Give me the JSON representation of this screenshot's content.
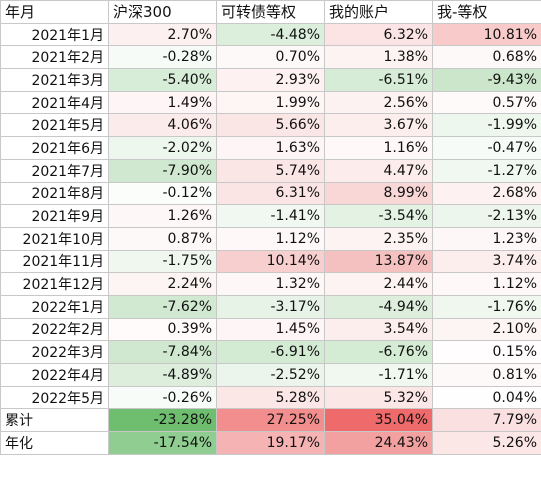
{
  "headers": [
    "年月",
    "沪深300",
    "可转债等权",
    "我的账户",
    "我-等权"
  ],
  "rows": [
    {
      "label": "2021年1月",
      "values": [
        "2.70%",
        "-4.48%",
        "6.32%",
        "10.81%"
      ],
      "colors": [
        "#fdf0f0",
        "#dcefdc",
        "#fce4e4",
        "#f8caca"
      ]
    },
    {
      "label": "2021年2月",
      "values": [
        "-0.28%",
        "0.70%",
        "1.38%",
        "0.68%"
      ],
      "colors": [
        "#f7fbf7",
        "#fef9f9",
        "#fdf3f3",
        "#fef9f9"
      ]
    },
    {
      "label": "2021年3月",
      "values": [
        "-5.40%",
        "2.93%",
        "-6.51%",
        "-9.43%"
      ],
      "colors": [
        "#d8edd8",
        "#fdf1f1",
        "#d6ecd6",
        "#cbe6cb"
      ]
    },
    {
      "label": "2021年4月",
      "values": [
        "1.49%",
        "1.99%",
        "2.56%",
        "0.57%"
      ],
      "colors": [
        "#fef6f6",
        "#fef5f5",
        "#fdf2f2",
        "#fefafa"
      ]
    },
    {
      "label": "2021年5月",
      "values": [
        "4.06%",
        "5.66%",
        "3.67%",
        "-1.99%"
      ],
      "colors": [
        "#fcebeb",
        "#fbe6e6",
        "#fdeeee",
        "#eef7ee"
      ]
    },
    {
      "label": "2021年6月",
      "values": [
        "-2.02%",
        "1.63%",
        "1.16%",
        "-0.47%"
      ],
      "colors": [
        "#eef7ee",
        "#fef6f6",
        "#fef8f8",
        "#f7fbf7"
      ]
    },
    {
      "label": "2021年7月",
      "values": [
        "-7.90%",
        "5.74%",
        "4.47%",
        "-1.27%"
      ],
      "colors": [
        "#cfe8cf",
        "#fbe6e6",
        "#fcecec",
        "#f1f8f1"
      ]
    },
    {
      "label": "2021年8月",
      "values": [
        "-0.12%",
        "6.31%",
        "8.99%",
        "2.68%"
      ],
      "colors": [
        "#fafdfa",
        "#fbe4e4",
        "#f9d7d7",
        "#fdf1f1"
      ]
    },
    {
      "label": "2021年9月",
      "values": [
        "1.26%",
        "-1.41%",
        "-3.54%",
        "-2.13%"
      ],
      "colors": [
        "#fef7f7",
        "#f1f8f1",
        "#e4f2e4",
        "#edf6ed"
      ]
    },
    {
      "label": "2021年10月",
      "values": [
        "0.87%",
        "1.12%",
        "2.35%",
        "1.23%"
      ],
      "colors": [
        "#fef9f9",
        "#fef8f8",
        "#fdf3f3",
        "#fef7f7"
      ]
    },
    {
      "label": "2021年11月",
      "values": [
        "-1.75%",
        "10.14%",
        "13.87%",
        "3.74%"
      ],
      "colors": [
        "#eff7ef",
        "#f8cfcf",
        "#f5c0c0",
        "#fdeeee"
      ]
    },
    {
      "label": "2021年12月",
      "values": [
        "2.24%",
        "1.32%",
        "2.44%",
        "1.12%"
      ],
      "colors": [
        "#fdf4f4",
        "#fef7f7",
        "#fdf3f3",
        "#fef8f8"
      ]
    },
    {
      "label": "2022年1月",
      "values": [
        "-7.62%",
        "-3.17%",
        "-4.94%",
        "-1.76%"
      ],
      "colors": [
        "#d0e9d0",
        "#e6f3e6",
        "#ddeedd",
        "#eff7ef"
      ]
    },
    {
      "label": "2022年2月",
      "values": [
        "0.39%",
        "1.45%",
        "3.54%",
        "2.10%"
      ],
      "colors": [
        "#fffbfb",
        "#fef6f6",
        "#fdeeee",
        "#fdf4f4"
      ]
    },
    {
      "label": "2022年3月",
      "values": [
        "-7.84%",
        "-6.91%",
        "-6.76%",
        "0.15%"
      ],
      "colors": [
        "#cfe8cf",
        "#d3ead3",
        "#d4ebd4",
        "#fffdfd"
      ]
    },
    {
      "label": "2022年4月",
      "values": [
        "-4.89%",
        "-2.52%",
        "-1.71%",
        "0.81%"
      ],
      "colors": [
        "#ddeedd",
        "#ebf5eb",
        "#f0f8f0",
        "#fef9f9"
      ]
    },
    {
      "label": "2022年5月",
      "values": [
        "-0.26%",
        "5.28%",
        "5.32%",
        "0.04%"
      ],
      "colors": [
        "#f8fcf8",
        "#fce7e7",
        "#fce7e7",
        "#fffefe"
      ]
    }
  ],
  "summary": [
    {
      "label": "累计",
      "values": [
        "-23.28%",
        "27.25%",
        "35.04%",
        "7.79%"
      ],
      "colors": [
        "#6fbe6f",
        "#f28e8e",
        "#ef6a6a",
        "#fae0e0"
      ]
    },
    {
      "label": "年化",
      "values": [
        "-17.54%",
        "19.17%",
        "24.43%",
        "5.26%"
      ],
      "colors": [
        "#90cd90",
        "#f6b3b3",
        "#f3a0a0",
        "#fce7e7"
      ]
    }
  ]
}
